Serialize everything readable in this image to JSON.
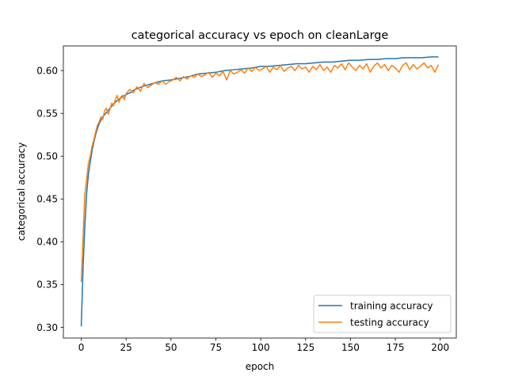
{
  "chart_data": {
    "type": "line",
    "title": "categorical accuracy vs epoch on cleanLarge",
    "xlabel": "epoch",
    "ylabel": "categorical accuracy",
    "xlim": [
      -9.95,
      208.95
    ],
    "ylim": [
      0.2875,
      0.6288
    ],
    "xticks": [
      0,
      25,
      50,
      75,
      100,
      125,
      150,
      175,
      200
    ],
    "yticks": [
      0.3,
      0.35,
      0.4,
      0.45,
      0.5,
      0.55,
      0.6
    ],
    "ytick_labels": [
      "0.30",
      "0.35",
      "0.40",
      "0.45",
      "0.50",
      "0.55",
      "0.60"
    ],
    "grid": false,
    "legend": {
      "placement": "lower-right"
    },
    "series": [
      {
        "name": "training accuracy",
        "color": "#1f77b4",
        "x": [
          0,
          1,
          2,
          3,
          4,
          5,
          6,
          7,
          8,
          9,
          10,
          12,
          14,
          16,
          18,
          20,
          22,
          25,
          28,
          30,
          35,
          40,
          45,
          50,
          55,
          60,
          65,
          70,
          75,
          80,
          85,
          90,
          95,
          100,
          105,
          110,
          115,
          120,
          125,
          130,
          135,
          140,
          145,
          150,
          155,
          160,
          165,
          170,
          175,
          180,
          185,
          190,
          195,
          199
        ],
        "y": [
          0.301,
          0.368,
          0.418,
          0.456,
          0.479,
          0.493,
          0.506,
          0.516,
          0.525,
          0.532,
          0.538,
          0.546,
          0.551,
          0.556,
          0.561,
          0.565,
          0.568,
          0.572,
          0.575,
          0.578,
          0.582,
          0.585,
          0.588,
          0.589,
          0.591,
          0.593,
          0.596,
          0.597,
          0.598,
          0.6,
          0.601,
          0.602,
          0.603,
          0.605,
          0.605,
          0.606,
          0.607,
          0.608,
          0.608,
          0.609,
          0.61,
          0.61,
          0.611,
          0.612,
          0.612,
          0.613,
          0.613,
          0.614,
          0.614,
          0.615,
          0.615,
          0.615,
          0.616,
          0.616
        ]
      },
      {
        "name": "testing accuracy",
        "color": "#ff7f0e",
        "x": [
          0,
          1,
          2,
          3,
          4,
          5,
          6,
          7,
          8,
          9,
          10,
          11,
          12,
          13,
          14,
          15,
          16,
          17,
          18,
          19,
          20,
          21,
          22,
          23,
          24,
          25,
          27,
          29,
          31,
          33,
          35,
          37,
          39,
          41,
          43,
          45,
          47,
          49,
          51,
          53,
          55,
          57,
          59,
          61,
          63,
          65,
          67,
          69,
          71,
          73,
          75,
          77,
          79,
          81,
          83,
          85,
          87,
          89,
          91,
          93,
          95,
          97,
          99,
          101,
          103,
          105,
          107,
          109,
          111,
          113,
          115,
          117,
          119,
          121,
          123,
          125,
          127,
          129,
          131,
          133,
          135,
          137,
          139,
          141,
          143,
          145,
          147,
          149,
          151,
          153,
          155,
          157,
          159,
          161,
          163,
          165,
          167,
          169,
          171,
          173,
          175,
          177,
          179,
          181,
          183,
          185,
          187,
          189,
          191,
          193,
          195,
          197,
          199
        ],
        "y": [
          0.353,
          0.404,
          0.455,
          0.473,
          0.491,
          0.5,
          0.511,
          0.519,
          0.528,
          0.536,
          0.54,
          0.546,
          0.543,
          0.553,
          0.556,
          0.549,
          0.555,
          0.562,
          0.559,
          0.566,
          0.571,
          0.563,
          0.569,
          0.571,
          0.566,
          0.573,
          0.578,
          0.574,
          0.581,
          0.576,
          0.585,
          0.58,
          0.583,
          0.586,
          0.584,
          0.588,
          0.584,
          0.587,
          0.589,
          0.592,
          0.588,
          0.593,
          0.59,
          0.594,
          0.592,
          0.596,
          0.593,
          0.595,
          0.598,
          0.592,
          0.597,
          0.594,
          0.599,
          0.589,
          0.6,
          0.596,
          0.598,
          0.601,
          0.597,
          0.603,
          0.599,
          0.604,
          0.6,
          0.602,
          0.605,
          0.598,
          0.604,
          0.601,
          0.606,
          0.599,
          0.603,
          0.605,
          0.6,
          0.606,
          0.602,
          0.604,
          0.598,
          0.605,
          0.601,
          0.607,
          0.6,
          0.604,
          0.598,
          0.606,
          0.603,
          0.608,
          0.601,
          0.609,
          0.604,
          0.6,
          0.606,
          0.602,
          0.608,
          0.598,
          0.605,
          0.609,
          0.603,
          0.607,
          0.6,
          0.606,
          0.603,
          0.598,
          0.606,
          0.609,
          0.601,
          0.607,
          0.602,
          0.605,
          0.609,
          0.603,
          0.606,
          0.598,
          0.607
        ]
      }
    ]
  }
}
